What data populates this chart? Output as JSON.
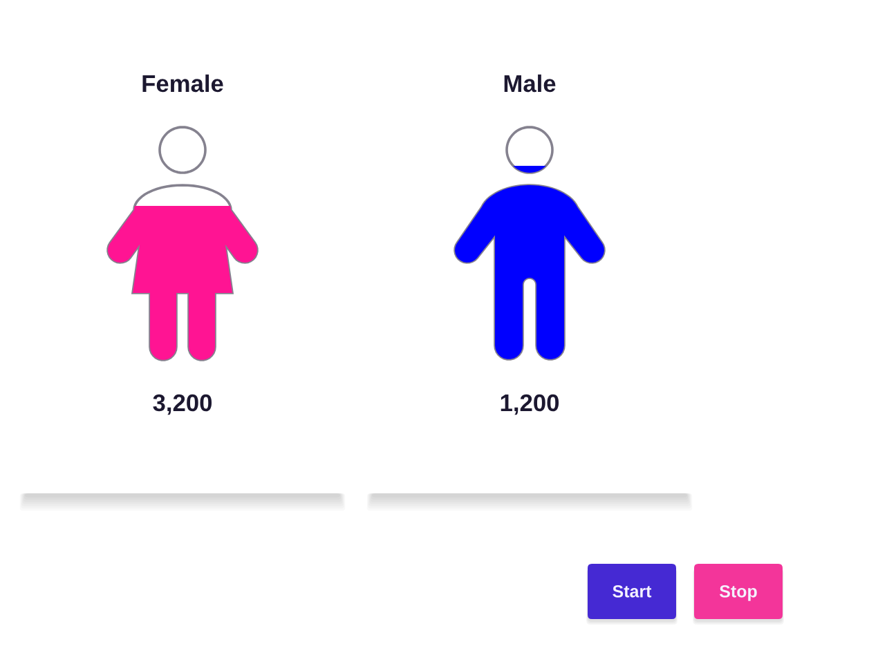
{
  "chart_data": {
    "type": "other",
    "categories": [
      "Female",
      "Male"
    ],
    "values": [
      3200,
      1200
    ],
    "value_labels": [
      "3,200",
      "1,200"
    ],
    "colors": [
      "#ff1493",
      "#0000ff"
    ],
    "annotations": [
      "Start",
      "Stop"
    ]
  }
}
